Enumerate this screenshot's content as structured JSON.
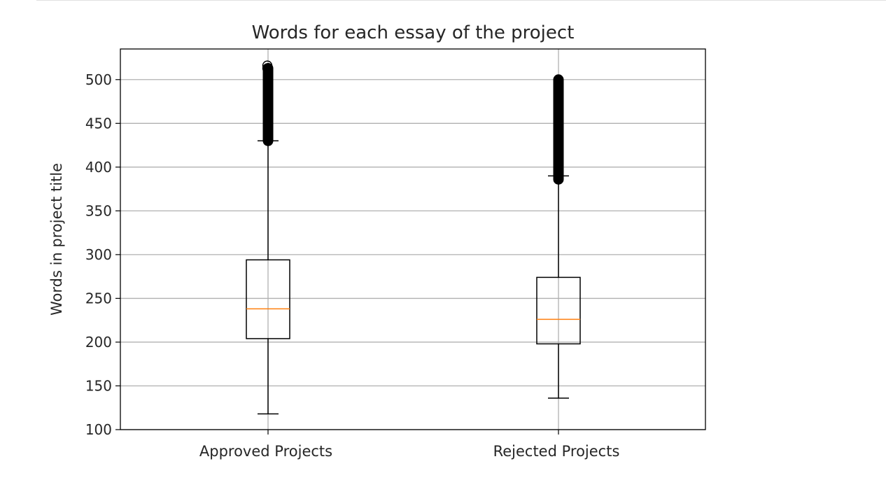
{
  "chart_data": {
    "type": "box",
    "title": "Words for each essay of the project",
    "xlabel": "",
    "ylabel": "Words in project title",
    "categories": [
      "Approved Projects",
      "Rejected Projects"
    ],
    "ylim": [
      100,
      535
    ],
    "yticks": [
      100,
      150,
      200,
      250,
      300,
      350,
      400,
      450,
      500
    ],
    "grid": true,
    "boxes": [
      {
        "category": "Approved Projects",
        "whisker_low": 118,
        "q1": 204,
        "median": 238,
        "q3": 294,
        "whisker_high": 430,
        "outlier_range": [
          430,
          513
        ],
        "outlier_max": 516
      },
      {
        "category": "Rejected Projects",
        "whisker_low": 136,
        "q1": 198,
        "median": 226,
        "q3": 274,
        "whisker_high": 390,
        "outlier_range": [
          386,
          500
        ],
        "outlier_max": 500
      }
    ],
    "colors": {
      "box": "#000000",
      "median": "#ff7f0e",
      "grid": "#b0b0b0",
      "outlier": "#000000"
    }
  }
}
